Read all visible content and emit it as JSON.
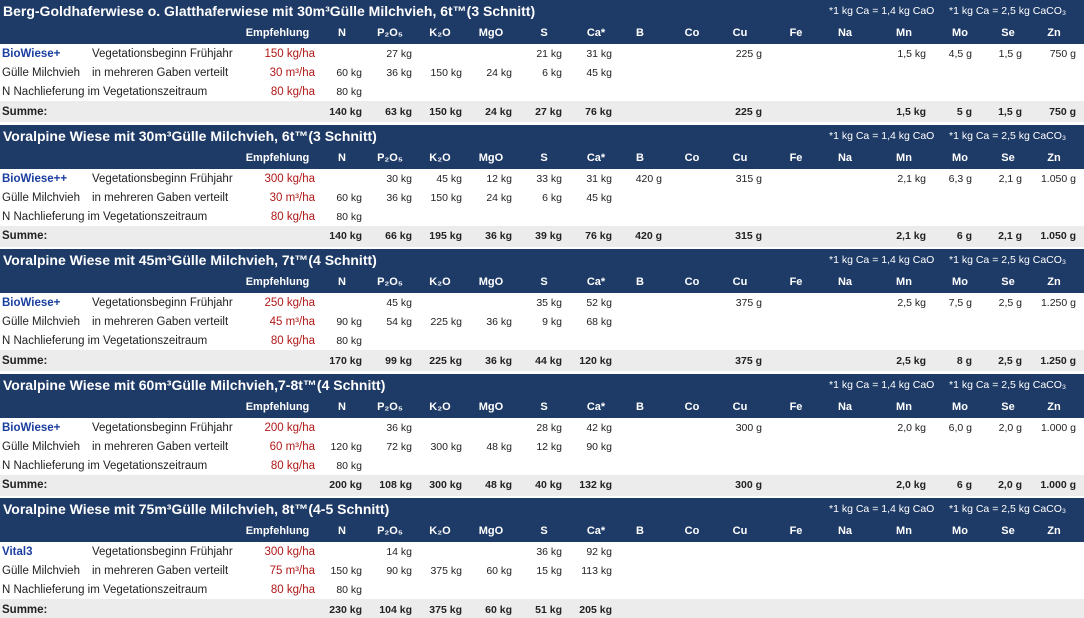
{
  "colors": {
    "header_bg": "#1e3a66",
    "header_text": "#ffffff",
    "recommend_text": "#b01818",
    "product_text": "#1a3ea0",
    "sum_bg": "#ececec"
  },
  "header_labels": [
    "Empfehlung",
    "N",
    "P₂O₅",
    "K₂O",
    "MgO",
    "S",
    "Ca*",
    "B",
    "Co",
    "Cu",
    "Fe",
    "Na",
    "Mn",
    "Mo",
    "Se",
    "Zn"
  ],
  "notes": [
    "*1 kg Ca = 1,4 kg CaO",
    "*1 kg Ca = 2,5 kg CaCO₃"
  ],
  "row_labels": {
    "guelle": "Gülle Milchvieh",
    "guelle_desc": "in mehreren Gaben verteilt",
    "nlief": "N Nachlieferung im Vegetationszeitraum",
    "sum": "Summe:"
  },
  "blocks": [
    {
      "title": "Berg-Goldhaferwiese o. Glatthaferwiese mit 30m³Gülle Milchvieh, 6t™(3 Schnitt)",
      "product": "BioWiese+",
      "product_desc": "Vegetationsbeginn Frühjahr",
      "product_rec": "150 kg/ha",
      "guelle_rec": "30 m³/ha",
      "nlief_rec": "80 kg/ha",
      "product_vals": [
        "",
        "27 kg",
        "",
        "",
        "21 kg",
        "31 kg",
        "",
        "",
        "225 g",
        "",
        "",
        "1,5 kg",
        "4,5 g",
        "1,5 g",
        "750 g"
      ],
      "guelle_vals": [
        "60 kg",
        "36 kg",
        "150 kg",
        "24 kg",
        "6 kg",
        "45 kg",
        "",
        "",
        "",
        "",
        "",
        "",
        "",
        "",
        ""
      ],
      "nlief_vals": [
        "80 kg",
        "",
        "",
        "",
        "",
        "",
        "",
        "",
        "",
        "",
        "",
        "",
        "",
        "",
        ""
      ],
      "sum_vals": [
        "140 kg",
        "63 kg",
        "150 kg",
        "24 kg",
        "27 kg",
        "76 kg",
        "",
        "",
        "225 g",
        "",
        "",
        "1,5 kg",
        "5 g",
        "1,5 g",
        "750 g"
      ]
    },
    {
      "title": "Voralpine Wiese mit 30m³Gülle Milchvieh, 6t™(3 Schnitt)",
      "product": "BioWiese++",
      "product_desc": "Vegetationsbeginn Frühjahr",
      "product_rec": "300 kg/ha",
      "guelle_rec": "30 m³/ha",
      "nlief_rec": "80 kg/ha",
      "product_vals": [
        "",
        "30 kg",
        "45 kg",
        "12 kg",
        "33 kg",
        "31 kg",
        "420 g",
        "",
        "315 g",
        "",
        "",
        "2,1 kg",
        "6,3 g",
        "2,1 g",
        "1.050 g"
      ],
      "guelle_vals": [
        "60 kg",
        "36 kg",
        "150 kg",
        "24 kg",
        "6 kg",
        "45 kg",
        "",
        "",
        "",
        "",
        "",
        "",
        "",
        "",
        ""
      ],
      "nlief_vals": [
        "80 kg",
        "",
        "",
        "",
        "",
        "",
        "",
        "",
        "",
        "",
        "",
        "",
        "",
        "",
        ""
      ],
      "sum_vals": [
        "140 kg",
        "66 kg",
        "195 kg",
        "36 kg",
        "39 kg",
        "76 kg",
        "420 g",
        "",
        "315 g",
        "",
        "",
        "2,1 kg",
        "6 g",
        "2,1 g",
        "1.050 g"
      ]
    },
    {
      "title": "Voralpine Wiese mit 45m³Gülle Milchvieh, 7t™(4 Schnitt)",
      "product": "BioWiese+",
      "product_desc": "Vegetationsbeginn Frühjahr",
      "product_rec": "250 kg/ha",
      "guelle_rec": "45 m³/ha",
      "nlief_rec": "80 kg/ha",
      "product_vals": [
        "",
        "45 kg",
        "",
        "",
        "35 kg",
        "52 kg",
        "",
        "",
        "375 g",
        "",
        "",
        "2,5 kg",
        "7,5 g",
        "2,5 g",
        "1.250 g"
      ],
      "guelle_vals": [
        "90 kg",
        "54 kg",
        "225 kg",
        "36 kg",
        "9 kg",
        "68 kg",
        "",
        "",
        "",
        "",
        "",
        "",
        "",
        "",
        ""
      ],
      "nlief_vals": [
        "80 kg",
        "",
        "",
        "",
        "",
        "",
        "",
        "",
        "",
        "",
        "",
        "",
        "",
        "",
        ""
      ],
      "sum_vals": [
        "170 kg",
        "99 kg",
        "225 kg",
        "36 kg",
        "44 kg",
        "120 kg",
        "",
        "",
        "375 g",
        "",
        "",
        "2,5 kg",
        "8 g",
        "2,5 g",
        "1.250 g"
      ]
    },
    {
      "title": "Voralpine Wiese mit 60m³Gülle Milchvieh,7-8t™(4 Schnitt)",
      "product": "BioWiese+",
      "product_desc": "Vegetationsbeginn Frühjahr",
      "product_rec": "200 kg/ha",
      "guelle_rec": "60 m³/ha",
      "nlief_rec": "80 kg/ha",
      "product_vals": [
        "",
        "36 kg",
        "",
        "",
        "28 kg",
        "42 kg",
        "",
        "",
        "300 g",
        "",
        "",
        "2,0 kg",
        "6,0 g",
        "2,0 g",
        "1.000 g"
      ],
      "guelle_vals": [
        "120 kg",
        "72 kg",
        "300 kg",
        "48 kg",
        "12 kg",
        "90 kg",
        "",
        "",
        "",
        "",
        "",
        "",
        "",
        "",
        ""
      ],
      "nlief_vals": [
        "80 kg",
        "",
        "",
        "",
        "",
        "",
        "",
        "",
        "",
        "",
        "",
        "",
        "",
        "",
        ""
      ],
      "sum_vals": [
        "200 kg",
        "108 kg",
        "300 kg",
        "48 kg",
        "40 kg",
        "132 kg",
        "",
        "",
        "300 g",
        "",
        "",
        "2,0 kg",
        "6 g",
        "2,0 g",
        "1.000 g"
      ]
    },
    {
      "title": "Voralpine Wiese mit 75m³Gülle Milchvieh, 8t™(4-5 Schnitt)",
      "product": "Vital3",
      "product_desc": "Vegetationsbeginn Frühjahr",
      "product_rec": "300 kg/ha",
      "guelle_rec": "75 m³/ha",
      "nlief_rec": "80 kg/ha",
      "product_vals": [
        "",
        "14 kg",
        "",
        "",
        "36 kg",
        "92 kg",
        "",
        "",
        "",
        "",
        "",
        "",
        "",
        "",
        ""
      ],
      "guelle_vals": [
        "150 kg",
        "90 kg",
        "375 kg",
        "60 kg",
        "15 kg",
        "113 kg",
        "",
        "",
        "",
        "",
        "",
        "",
        "",
        "",
        ""
      ],
      "nlief_vals": [
        "80 kg",
        "",
        "",
        "",
        "",
        "",
        "",
        "",
        "",
        "",
        "",
        "",
        "",
        "",
        ""
      ],
      "sum_vals": [
        "230 kg",
        "104 kg",
        "375 kg",
        "60 kg",
        "51 kg",
        "205 kg",
        "",
        "",
        "",
        "",
        "",
        "",
        "",
        "",
        ""
      ]
    }
  ]
}
